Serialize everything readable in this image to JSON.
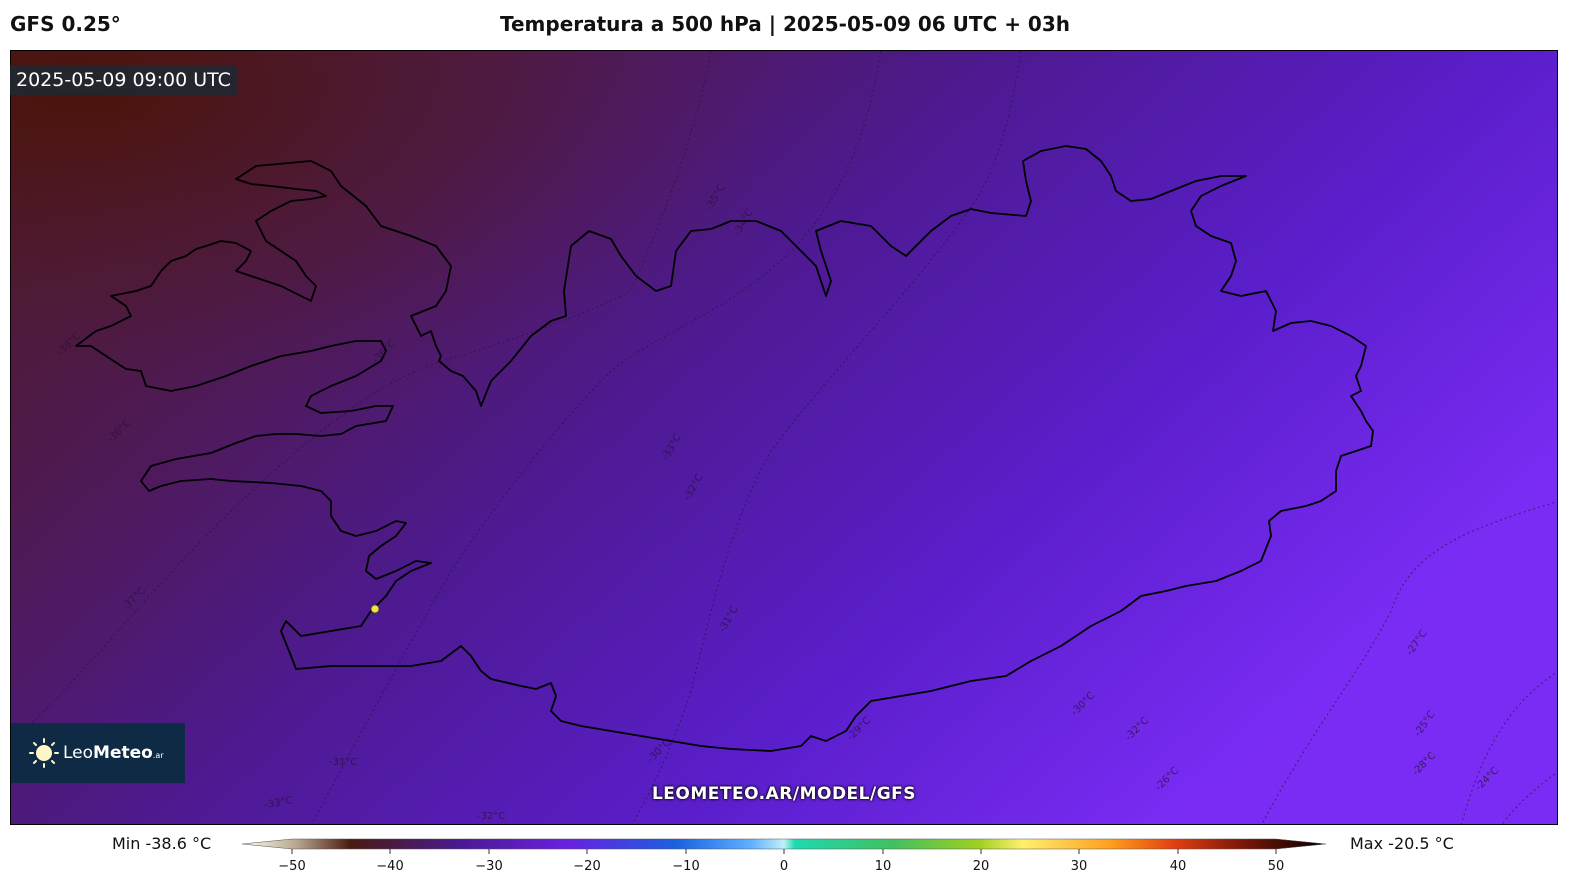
{
  "header": {
    "model": "GFS 0.25°",
    "title": "Temperatura a 500 hPa | 2025-05-09 06 UTC + 03h"
  },
  "map": {
    "valid_time": "2025-05-09 09:00 UTC",
    "watermark": "LEOMETEO.AR/MODEL/GFS",
    "logo": {
      "name_light": "Leo",
      "name_bold": "Meteo",
      "suffix": ".ar"
    },
    "isotherm_labels": [
      "-38°C",
      "-36°C",
      "-37°C",
      "-36°C",
      "-35°C",
      "-34°C",
      "-33°C",
      "-32°C",
      "-31°C",
      "-33°C",
      "-32°C",
      "-30°C",
      "-29°C",
      "-31°C",
      "-30°C",
      "-32°C",
      "-27°C",
      "-26°C",
      "-25°C",
      "-28°C",
      "-24°C",
      "-23°C",
      "-22°C",
      "-21°C"
    ],
    "colors": {
      "cold": "#4a1812",
      "mid": "#4d1a8a",
      "warm": "#7a2cf4"
    }
  },
  "colorbar": {
    "min_label": "Min -38.6 °C",
    "max_label": "Max -20.5 °C",
    "ticks": [
      "−50",
      "−40",
      "−30",
      "−20",
      "−10",
      "0",
      "10",
      "20",
      "30",
      "40",
      "50"
    ]
  }
}
